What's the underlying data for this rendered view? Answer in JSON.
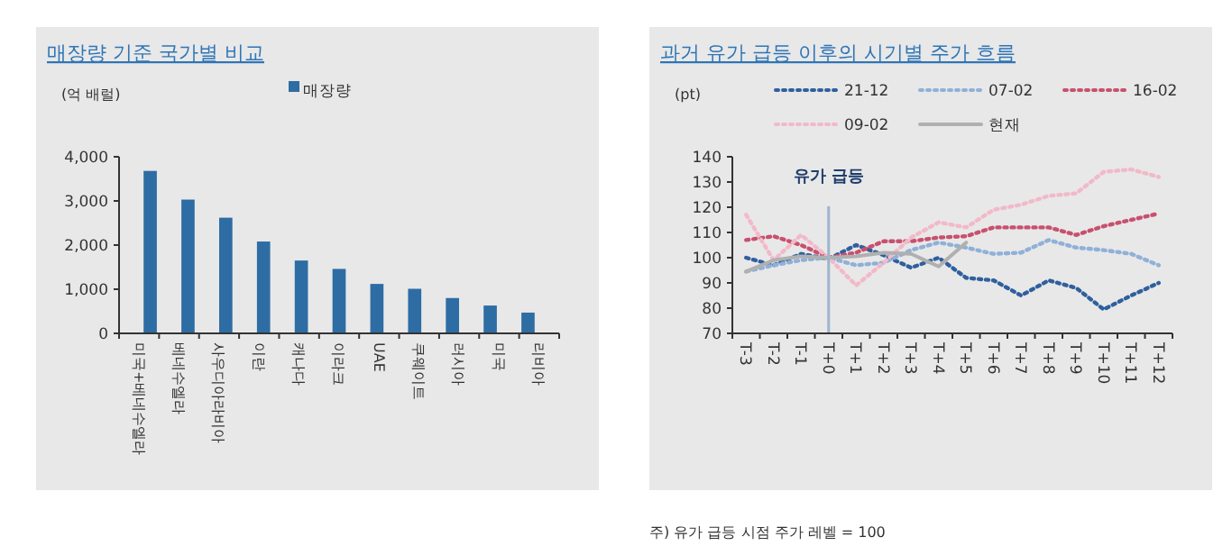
{
  "chart_data": [
    {
      "type": "bar",
      "title": "매장량 기준 국가별 비교",
      "ylabel": "(억 배럴)",
      "categories": [
        "미국+베네수엘라",
        "베네수엘라",
        "사우디아라비아",
        "이란",
        "캐나다",
        "이라크",
        "UAE",
        "쿠웨이트",
        "러시아",
        "미국",
        "리비아"
      ],
      "series": [
        {
          "name": "매장량",
          "color": "#2e6ca4",
          "values": [
            3680,
            3030,
            2620,
            2080,
            1650,
            1460,
            1120,
            1010,
            800,
            630,
            470
          ]
        }
      ],
      "ylim": [
        0,
        4000
      ],
      "yticks": [
        {
          "value": 0,
          "label": "0"
        },
        {
          "value": 1000,
          "label": "1,000"
        },
        {
          "value": 2000,
          "label": "2,000"
        },
        {
          "value": 3000,
          "label": "3,000"
        },
        {
          "value": 4000,
          "label": "4,000"
        }
      ],
      "legend": "top",
      "grid": false
    },
    {
      "type": "line",
      "title": "과거 유가 급등 이후의 시기별 주가 흐름",
      "ylabel": "(pt)",
      "categories": [
        "T-3",
        "T-2",
        "T-1",
        "T+0",
        "T+1",
        "T+2",
        "T+3",
        "T+4",
        "T+5",
        "T+6",
        "T+7",
        "T+8",
        "T+9",
        "T+10",
        "T+11",
        "T+12"
      ],
      "series": [
        {
          "name": "21-12",
          "color": "#2f5f9e",
          "line_style": "dotted",
          "values": [
            100,
            97,
            101.5,
            99.5,
            105,
            101,
            96,
            100,
            92,
            91,
            85,
            91,
            88,
            79.5,
            85,
            90
          ]
        },
        {
          "name": "07-02",
          "color": "#8fb0d8",
          "line_style": "dotted",
          "values": [
            94.5,
            97,
            99,
            100,
            97,
            98,
            103,
            106,
            104,
            101.5,
            102,
            107,
            104,
            103,
            101.5,
            97
          ]
        },
        {
          "name": "16-02",
          "color": "#c8506e",
          "line_style": "dotted",
          "values": [
            107,
            108.5,
            105,
            100,
            102,
            106.5,
            106.5,
            108,
            108.5,
            112,
            112,
            112,
            109,
            112.5,
            115,
            117.5
          ]
        },
        {
          "name": "09-02",
          "color": "#f2b9c9",
          "line_style": "dotted",
          "values": [
            117,
            99,
            109,
            100,
            89,
            98,
            108,
            114,
            112,
            119,
            121,
            124.5,
            125.5,
            134,
            135,
            132
          ]
        },
        {
          "name": "현재",
          "color": "#b0b0b0",
          "line_style": "solid",
          "values": [
            94.5,
            99,
            100.5,
            100,
            100.5,
            102,
            101.5,
            96.5,
            106,
            null,
            null,
            null,
            null,
            null,
            null,
            null
          ]
        }
      ],
      "ylim": [
        70,
        140
      ],
      "yticks": [
        70,
        80,
        90,
        100,
        110,
        120,
        130,
        140
      ],
      "ref_lines": [
        {
          "axis": "x",
          "value": "T+0",
          "label": "유가 급등",
          "color": "#9db5cc"
        }
      ],
      "legend": "top",
      "grid": false,
      "marker": "none",
      "annotations": [
        "주) 유가 급등 시점 주가 레벨 = 100"
      ]
    }
  ]
}
